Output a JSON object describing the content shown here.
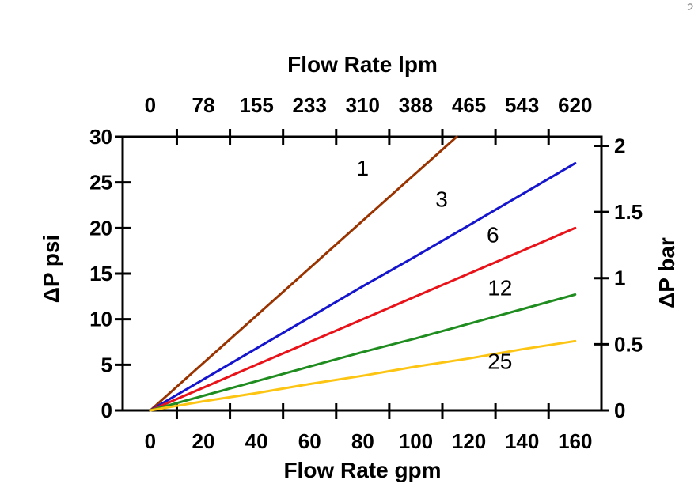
{
  "figure": {
    "background": "#ffffff",
    "axis_color": "#000000"
  },
  "chart_data": {
    "type": "line",
    "title_top": "Flow Rate lpm",
    "xlabel_bottom": "Flow Rate gpm",
    "ylabel_left": "ΔP psi",
    "ylabel_right": "ΔP bar",
    "xlim_gpm": [
      -10.4,
      169.9
    ],
    "ylim_psi": [
      0,
      30
    ],
    "grid": false,
    "legend": "inline-line-labels",
    "x_axis": {
      "bottom_unit": "gpm",
      "top_unit": "lpm",
      "label_positions_gpm": [
        0,
        20,
        40,
        60,
        80,
        100,
        120,
        140,
        160
      ],
      "bottom_labels": [
        "0",
        "20",
        "40",
        "60",
        "80",
        "100",
        "120",
        "140",
        "160"
      ],
      "top_labels": [
        "0",
        "78",
        "155",
        "233",
        "310",
        "388",
        "465",
        "543",
        "620"
      ],
      "tick_positions_gpm": [
        10,
        30,
        50,
        70,
        90,
        110,
        130,
        150
      ]
    },
    "y_axis_left": {
      "unit": "psi",
      "tick_positions": [
        0,
        5,
        10,
        15,
        20,
        25,
        30
      ],
      "labels": [
        "0",
        "5",
        "10",
        "15",
        "20",
        "25",
        "30"
      ]
    },
    "y_axis_right": {
      "unit": "bar",
      "tick_positions_bar": [
        0,
        0.5,
        1,
        1.5,
        2
      ],
      "labels": [
        "0",
        "0.5",
        "1",
        "1.5",
        "2"
      ],
      "psi_per_bar": 14.504
    },
    "series": [
      {
        "name": "1",
        "color": "#993300",
        "points_gpm_psi": [
          [
            0,
            0
          ],
          [
            20,
            5.2
          ],
          [
            40,
            10.4
          ],
          [
            60,
            15.6
          ],
          [
            80,
            20.8
          ],
          [
            100,
            26.0
          ],
          [
            115.4,
            30.0
          ]
        ],
        "label": {
          "text": "1",
          "x_gpm": 80.0,
          "y_psi": 26.6
        }
      },
      {
        "name": "3",
        "color": "#1515cd",
        "points_gpm_psi": [
          [
            0,
            0
          ],
          [
            20,
            3.4
          ],
          [
            40,
            6.8
          ],
          [
            60,
            10.2
          ],
          [
            80,
            13.6
          ],
          [
            100,
            16.9
          ],
          [
            120,
            20.3
          ],
          [
            140,
            23.7
          ],
          [
            160,
            27.1
          ]
        ],
        "label": {
          "text": "3",
          "x_gpm": 109.7,
          "y_psi": 23.2
        }
      },
      {
        "name": "6",
        "color": "#e91219",
        "points_gpm_psi": [
          [
            0,
            0
          ],
          [
            20,
            2.5
          ],
          [
            40,
            5.0
          ],
          [
            60,
            7.5
          ],
          [
            80,
            10.0
          ],
          [
            100,
            12.5
          ],
          [
            120,
            15.0
          ],
          [
            140,
            17.5
          ],
          [
            160,
            20.0
          ]
        ],
        "label": {
          "text": "6",
          "x_gpm": 129.0,
          "y_psi": 19.3
        }
      },
      {
        "name": "12",
        "color": "#1f8c1f",
        "points_gpm_psi": [
          [
            0,
            0
          ],
          [
            20,
            1.6
          ],
          [
            40,
            3.2
          ],
          [
            60,
            4.8
          ],
          [
            80,
            6.4
          ],
          [
            100,
            7.9
          ],
          [
            120,
            9.5
          ],
          [
            140,
            11.1
          ],
          [
            160,
            12.7
          ]
        ],
        "label": {
          "text": "12",
          "x_gpm": 131.7,
          "y_psi": 13.5
        }
      },
      {
        "name": "25",
        "color": "#fdc513",
        "points_gpm_psi": [
          [
            0,
            0
          ],
          [
            20,
            1.0
          ],
          [
            40,
            1.9
          ],
          [
            60,
            2.9
          ],
          [
            80,
            3.8
          ],
          [
            100,
            4.8
          ],
          [
            120,
            5.7
          ],
          [
            140,
            6.7
          ],
          [
            160,
            7.6
          ]
        ],
        "label": {
          "text": "25",
          "x_gpm": 131.7,
          "y_psi": 5.4
        }
      }
    ]
  }
}
